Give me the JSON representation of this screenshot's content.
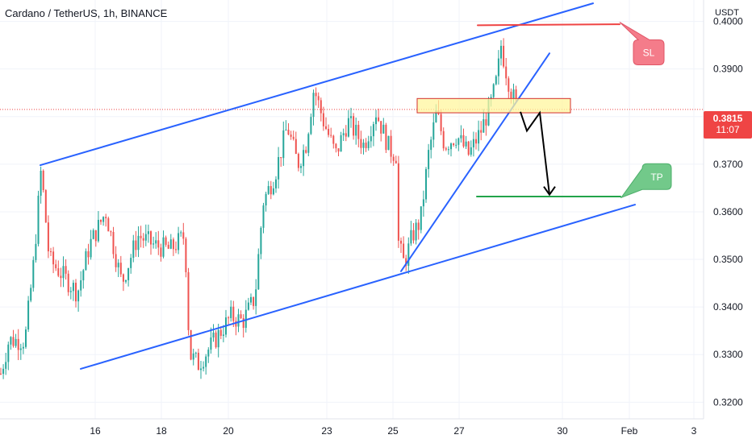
{
  "header": {
    "title": "Cardano / TetherUS, 1h, BINANCE",
    "unit": "USDT"
  },
  "current_price": {
    "value": "0.3815",
    "countdown": "11:07",
    "color": "#ef4444"
  },
  "annotations": {
    "sl_label": "SL",
    "tp_label": "TP",
    "sl_price": 0.3995,
    "tp_price": 0.363
  },
  "colors": {
    "up": "#26a69a",
    "down": "#ef5350",
    "channel": "#2962ff",
    "sl": "#ef4444",
    "tp": "#22a34a",
    "zone": "#fff59d"
  },
  "chart_data": {
    "type": "candlestick",
    "title": "Cardano / TetherUS, 1h, BINANCE",
    "ylabel": "USDT",
    "ylim": [
      0.3165,
      0.4045
    ],
    "y_ticks": [
      "0.4000",
      "0.3900",
      "0.3800",
      "0.3700",
      "0.3600",
      "0.3500",
      "0.3400",
      "0.3300",
      "0.3200"
    ],
    "x_ticks": [
      "16",
      "18",
      "20",
      "23",
      "25",
      "27",
      "30",
      "Feb",
      "3"
    ],
    "price_path": [
      [
        0,
        0.326
      ],
      [
        10,
        0.333
      ],
      [
        30,
        0.333
      ],
      [
        40,
        0.348
      ],
      [
        50,
        0.369
      ],
      [
        60,
        0.35
      ],
      [
        80,
        0.346
      ],
      [
        95,
        0.343
      ],
      [
        110,
        0.353
      ],
      [
        130,
        0.36
      ],
      [
        150,
        0.345
      ],
      [
        170,
        0.355
      ],
      [
        190,
        0.353
      ],
      [
        210,
        0.352
      ],
      [
        228,
        0.355
      ],
      [
        234,
        0.33
      ],
      [
        245,
        0.328
      ],
      [
        265,
        0.333
      ],
      [
        285,
        0.338
      ],
      [
        300,
        0.337
      ],
      [
        315,
        0.342
      ],
      [
        325,
        0.362
      ],
      [
        340,
        0.368
      ],
      [
        355,
        0.378
      ],
      [
        368,
        0.37
      ],
      [
        378,
        0.374
      ],
      [
        388,
        0.386
      ],
      [
        400,
        0.379
      ],
      [
        415,
        0.372
      ],
      [
        430,
        0.379
      ],
      [
        450,
        0.374
      ],
      [
        465,
        0.381
      ],
      [
        482,
        0.373
      ],
      [
        490,
        0.372
      ],
      [
        493,
        0.353
      ],
      [
        500,
        0.349
      ],
      [
        510,
        0.355
      ],
      [
        520,
        0.358
      ],
      [
        530,
        0.372
      ],
      [
        540,
        0.381
      ],
      [
        550,
        0.374
      ],
      [
        565,
        0.376
      ],
      [
        580,
        0.372
      ],
      [
        595,
        0.377
      ],
      [
        608,
        0.383
      ],
      [
        615,
        0.388
      ],
      [
        620,
        0.395
      ],
      [
        627,
        0.389
      ],
      [
        633,
        0.385
      ],
      [
        641,
        0.3815
      ]
    ],
    "channel": {
      "upper": [
        [
          50,
          0.3698
        ],
        [
          735,
          0.4038
        ]
      ],
      "lower": [
        [
          100,
          0.327
        ],
        [
          787,
          0.3615
        ]
      ],
      "trendline": [
        [
          497,
          0.3475
        ],
        [
          681,
          0.3933
        ]
      ]
    },
    "zone": [
      [
        517,
        0.3838
      ],
      [
        707,
        0.3808
      ]
    ],
    "projection": [
      [
        645,
        0.381
      ],
      [
        653,
        0.377
      ],
      [
        669,
        0.3808
      ],
      [
        681,
        0.3636
      ]
    ],
    "levels": {
      "sl": [
        [
          592,
          0.3992
        ],
        [
          768,
          0.3994
        ]
      ],
      "tp": [
        [
          591,
          0.3632
        ],
        [
          769,
          0.3632
        ]
      ]
    }
  }
}
